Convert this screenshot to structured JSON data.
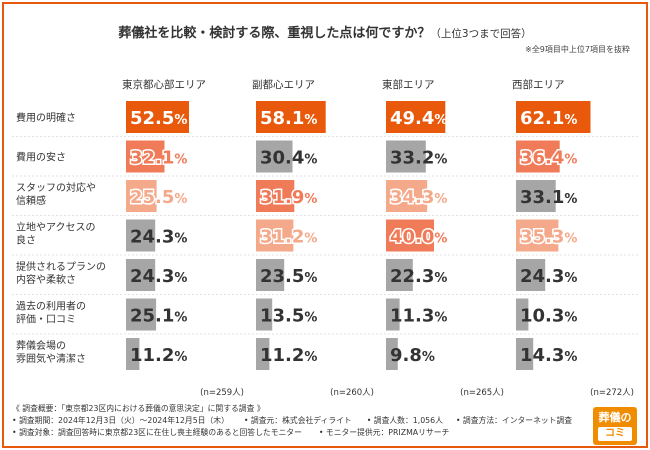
{
  "title": "葬儀社を比較・検討する際、重視した点は何ですか？",
  "title_sub": "（上位3つまで回答）",
  "note": "※全9項目中上位7項目を抜粋",
  "chart_data": {
    "type": "bar",
    "groups": [
      "東京都心部エリア",
      "副都心エリア",
      "東部エリア",
      "西部エリア"
    ],
    "categories": [
      [
        "費用の明確さ"
      ],
      [
        "費用の安さ"
      ],
      [
        "スタッフの対応や",
        "信頼感"
      ],
      [
        "立地やアクセスの",
        "良さ"
      ],
      [
        "提供されるプランの",
        "内容や柔軟さ"
      ],
      [
        "過去の利用者の",
        "評価・口コミ"
      ],
      [
        "葬儀会場の",
        "雰囲気や清潔さ"
      ]
    ],
    "series": [
      {
        "name": "東京都心部エリア",
        "values": [
          52.5,
          32.1,
          25.5,
          24.3,
          24.3,
          25.1,
          11.2
        ],
        "labels": [
          "52.5%",
          "32.1%",
          "25.5%",
          "24.3%",
          "24.3%",
          "25.1%",
          "11.2%"
        ]
      },
      {
        "name": "副都心エリア",
        "values": [
          58.1,
          30.4,
          31.9,
          31.2,
          23.5,
          13.5,
          11.2
        ],
        "labels": [
          "58.1%",
          "30.4%",
          "31.9%",
          "31.2%",
          "23.5%",
          "13.5%",
          "11.2%"
        ]
      },
      {
        "name": "東部エリア",
        "values": [
          49.4,
          33.2,
          34.3,
          40.0,
          22.3,
          11.3,
          9.8
        ],
        "labels": [
          "49.4%",
          "33.2%",
          "34.3%",
          "40.0%",
          "22.3%",
          "11.3%",
          "9.8%"
        ]
      },
      {
        "name": "西部エリア",
        "values": [
          62.1,
          36.4,
          33.1,
          35.3,
          24.3,
          10.3,
          14.3
        ],
        "labels": [
          "62.1%",
          "36.4%",
          "33.1%",
          "35.3%",
          "24.3%",
          "10.3%",
          "14.3%"
        ]
      }
    ],
    "rank_colors": {
      "rank1": "#e8590c",
      "rank2": "#f07b59",
      "rank3": "#f4a98b",
      "other": "#a6a6a6"
    },
    "ranks": [
      [
        1,
        2,
        3,
        0,
        0,
        0,
        0
      ],
      [
        1,
        0,
        2,
        3,
        0,
        0,
        0
      ],
      [
        1,
        0,
        3,
        2,
        0,
        0,
        0
      ],
      [
        1,
        2,
        0,
        3,
        0,
        0,
        0
      ]
    ],
    "sample_sizes": [
      "(n=259人)",
      "(n=260人)",
      "(n=265人)",
      "(n=272人)"
    ],
    "xlim": [
      0,
      100
    ],
    "grid": false,
    "legend": "none"
  },
  "footer": {
    "line1": "《 調査概要：「東京都23区内における葬儀の意思決定」に関する調査 》",
    "line2a": "• 調査期間：2024年12月3日（火）〜2024年12月5日（木）",
    "line2b": "• 調査元：株式会社ディライト",
    "line2c": "• 調査人数：1,056人",
    "line2d": "• 調査方法：インターネット調査",
    "line3a": "• 調査対象：調査回答時に東京都23区に在住し喪主経験のあると回答したモニター",
    "line3b": "• モニター提供元：PRIZMAリサーチ"
  },
  "logo": {
    "line1": "葬儀の",
    "line2": "コミ"
  }
}
